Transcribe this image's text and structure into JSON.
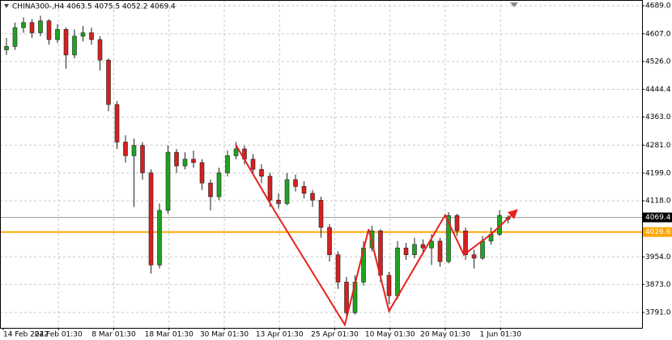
{
  "chart_data": {
    "type": "candlestick",
    "title": "CHINA300-,H4  4063.5 4075.5 4052.2 4069.4",
    "ylim": [
      3746,
      4706
    ],
    "yticks": [
      {
        "value": 4689,
        "label": "4689.0"
      },
      {
        "value": 4607,
        "label": "4607.0"
      },
      {
        "value": 4526,
        "label": "4526.0"
      },
      4444.4,
      {
        "value": 4363,
        "label": "4363.0"
      },
      {
        "value": 4281,
        "label": "4281.0"
      },
      {
        "value": 4199,
        "label": "4199.0"
      },
      {
        "value": 4118,
        "label": "4118.0"
      },
      {
        "value": 3954,
        "label": "3954.0"
      },
      {
        "value": 3873,
        "label": "3873.0"
      },
      {
        "value": 3791,
        "label": "3791.0"
      }
    ],
    "grid": true,
    "x_labels": {
      "positions": [
        0,
        6.5,
        13,
        19.5,
        26,
        32.5,
        39,
        45.5,
        52,
        58.5
      ],
      "labels": [
        "14 Feb 2022",
        "24 Feb 01:30",
        "8 Mar 01:30",
        "18 Mar 01:30",
        "30 Mar 01:30",
        "13 Apr 01:30",
        "25 Apr 01:30",
        "10 May 01:30",
        "20 May 01:30",
        "1 Jun 01:30"
      ]
    },
    "up_color": "#1fa31f",
    "down_color": "#d62020",
    "open": [
      4560,
      4570,
      4625,
      4640,
      4610,
      4645,
      4590,
      4620,
      4545,
      4600,
      4610,
      4590,
      4530,
      4400,
      4290,
      4250,
      4280,
      4200,
      3930,
      4090,
      4260,
      4220,
      4240,
      4230,
      4170,
      4130,
      4200,
      4250,
      4270,
      4240,
      4210,
      4190,
      4120,
      4110,
      4180,
      4160,
      4140,
      4120,
      4040,
      3960,
      3880,
      3790,
      3880,
      3980,
      4030,
      3900,
      3840,
      3980,
      3960,
      3990,
      3980,
      4000,
      3940,
      4075,
      4030,
      3960,
      3950,
      4000,
      4020,
      4063.5
    ],
    "high": [
      4595,
      4640,
      4655,
      4650,
      4660,
      4650,
      4635,
      4625,
      4620,
      4630,
      4625,
      4600,
      4535,
      4410,
      4310,
      4300,
      4290,
      4210,
      4110,
      4280,
      4270,
      4260,
      4265,
      4240,
      4180,
      4215,
      4265,
      4290,
      4280,
      4255,
      4225,
      4200,
      4140,
      4200,
      4195,
      4175,
      4150,
      4130,
      4050,
      3970,
      3895,
      3900,
      4000,
      4045,
      4035,
      3910,
      4000,
      3995,
      4010,
      4005,
      4020,
      4010,
      4085,
      4080,
      4040,
      3975,
      4015,
      4040,
      4090,
      4075.5
    ],
    "low": [
      4545,
      4560,
      4610,
      4595,
      4600,
      4575,
      4580,
      4505,
      4535,
      4585,
      4575,
      4500,
      4380,
      4270,
      4230,
      4100,
      4180,
      3905,
      3920,
      4080,
      4200,
      4210,
      4215,
      4150,
      4090,
      4120,
      4190,
      4240,
      4225,
      4195,
      4170,
      4100,
      4095,
      4105,
      4145,
      4125,
      4100,
      4010,
      3940,
      3860,
      3775,
      3785,
      3870,
      3970,
      3880,
      3815,
      3830,
      3945,
      3950,
      3965,
      3930,
      3925,
      3935,
      4015,
      3945,
      3920,
      3945,
      3990,
      4015,
      4052.2
    ],
    "close": [
      4570,
      4625,
      4640,
      4610,
      4645,
      4590,
      4620,
      4545,
      4600,
      4610,
      4590,
      4530,
      4400,
      4290,
      4250,
      4280,
      4200,
      3930,
      4090,
      4260,
      4220,
      4240,
      4230,
      4170,
      4130,
      4200,
      4250,
      4270,
      4240,
      4210,
      4190,
      4120,
      4110,
      4180,
      4160,
      4140,
      4120,
      4040,
      3960,
      3880,
      3790,
      3880,
      3980,
      4030,
      3900,
      3840,
      3980,
      3960,
      3990,
      3980,
      4000,
      3940,
      4075,
      4030,
      3960,
      3950,
      4000,
      4020,
      4075,
      4069.4
    ],
    "zigzag": {
      "color": "#e8201c",
      "x": [
        27,
        31.5,
        39.8,
        42.6,
        45,
        51.6,
        53.8,
        57,
        60
      ],
      "values": [
        4281,
        4090,
        3755,
        4035,
        3795,
        4076,
        3960,
        4020,
        4090
      ]
    },
    "price_lines": [
      {
        "value": 4069.4,
        "color": "#9a9a9a",
        "label_bg": "#000000"
      },
      {
        "value": 4026.6,
        "color": "#ffa500",
        "label_bg": "#ffa500"
      }
    ]
  }
}
